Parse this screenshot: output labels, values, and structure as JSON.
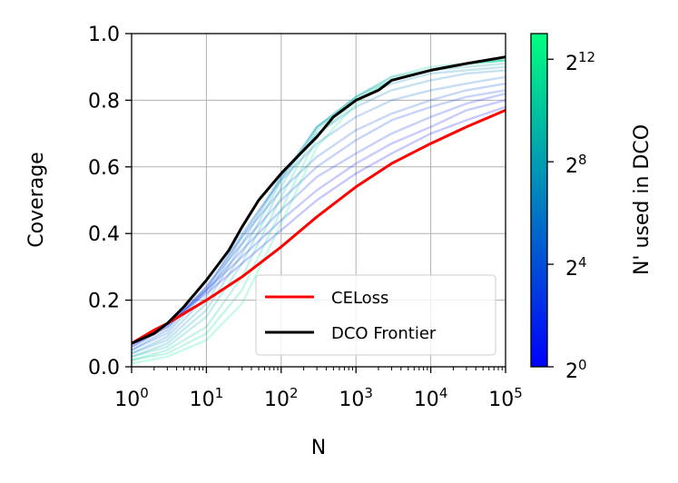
{
  "chart_data": {
    "type": "line",
    "xlabel": "N",
    "ylabel": "Coverage",
    "xscale": "log10",
    "xlim": [
      1,
      100000
    ],
    "ylim": [
      0,
      1
    ],
    "x_ticks": [
      {
        "value": 1,
        "base": "10",
        "exp": "0"
      },
      {
        "value": 10,
        "base": "10",
        "exp": "1"
      },
      {
        "value": 100,
        "base": "10",
        "exp": "2"
      },
      {
        "value": 1000,
        "base": "10",
        "exp": "3"
      },
      {
        "value": 10000,
        "base": "10",
        "exp": "4"
      },
      {
        "value": 100000,
        "base": "10",
        "exp": "5"
      }
    ],
    "y_ticks": [
      {
        "value": 0,
        "label": "0.0"
      },
      {
        "value": 0.2,
        "label": "0.2"
      },
      {
        "value": 0.4,
        "label": "0.4"
      },
      {
        "value": 0.6,
        "label": "0.6"
      },
      {
        "value": 0.8,
        "label": "0.8"
      },
      {
        "value": 1,
        "label": "1.0"
      }
    ],
    "grid": true,
    "legend_position": "lower-right",
    "legend": [
      {
        "label": "CELoss",
        "color": "#ff0000"
      },
      {
        "label": "DCO Frontier",
        "color": "#000000"
      }
    ],
    "series": [
      {
        "name": "CELoss",
        "color": "#ff0000",
        "x": [
          1,
          2,
          3,
          10,
          30,
          100,
          300,
          1000,
          3000,
          10000,
          30000,
          100000
        ],
        "y": [
          0.07,
          0.11,
          0.13,
          0.2,
          0.27,
          0.36,
          0.45,
          0.54,
          0.61,
          0.67,
          0.72,
          0.77
        ]
      },
      {
        "name": "DCO Frontier",
        "color": "#000000",
        "x": [
          1,
          2,
          3,
          5,
          10,
          20,
          30,
          50,
          100,
          200,
          300,
          500,
          1000,
          2000,
          3000,
          10000,
          30000,
          100000
        ],
        "y": [
          0.07,
          0.1,
          0.13,
          0.18,
          0.26,
          0.35,
          0.42,
          0.5,
          0.58,
          0.65,
          0.69,
          0.75,
          0.8,
          0.83,
          0.86,
          0.89,
          0.91,
          0.93
        ]
      }
    ],
    "dco_curves": {
      "x": [
        1,
        3,
        10,
        30,
        100,
        300,
        1000,
        3000,
        10000,
        30000,
        100000
      ],
      "items": [
        {
          "n_prime_log2": 0,
          "y": [
            0.07,
            0.13,
            0.22,
            0.31,
            0.41,
            0.5,
            0.58,
            0.64,
            0.7,
            0.74,
            0.78
          ]
        },
        {
          "n_prime_log2": 1,
          "y": [
            0.07,
            0.13,
            0.23,
            0.33,
            0.44,
            0.53,
            0.61,
            0.67,
            0.72,
            0.77,
            0.8
          ]
        },
        {
          "n_prime_log2": 2,
          "y": [
            0.06,
            0.12,
            0.23,
            0.35,
            0.47,
            0.57,
            0.64,
            0.7,
            0.75,
            0.79,
            0.82
          ]
        },
        {
          "n_prime_log2": 3,
          "y": [
            0.06,
            0.12,
            0.24,
            0.37,
            0.5,
            0.6,
            0.68,
            0.74,
            0.78,
            0.81,
            0.83
          ]
        },
        {
          "n_prime_log2": 4,
          "y": [
            0.05,
            0.11,
            0.24,
            0.39,
            0.53,
            0.63,
            0.71,
            0.76,
            0.8,
            0.83,
            0.85
          ]
        },
        {
          "n_prime_log2": 5,
          "y": [
            0.05,
            0.1,
            0.23,
            0.4,
            0.56,
            0.67,
            0.75,
            0.8,
            0.83,
            0.85,
            0.87
          ]
        },
        {
          "n_prime_log2": 6,
          "y": [
            0.04,
            0.09,
            0.21,
            0.39,
            0.57,
            0.7,
            0.78,
            0.83,
            0.86,
            0.88,
            0.89
          ]
        },
        {
          "n_prime_log2": 7,
          "y": [
            0.04,
            0.08,
            0.19,
            0.37,
            0.57,
            0.72,
            0.8,
            0.85,
            0.88,
            0.89,
            0.9
          ]
        },
        {
          "n_prime_log2": 8,
          "y": [
            0.03,
            0.07,
            0.17,
            0.34,
            0.56,
            0.72,
            0.81,
            0.86,
            0.89,
            0.9,
            0.91
          ]
        },
        {
          "n_prime_log2": 9,
          "y": [
            0.03,
            0.06,
            0.15,
            0.31,
            0.54,
            0.72,
            0.81,
            0.87,
            0.89,
            0.91,
            0.92
          ]
        },
        {
          "n_prime_log2": 10,
          "y": [
            0.02,
            0.05,
            0.12,
            0.27,
            0.51,
            0.71,
            0.81,
            0.87,
            0.9,
            0.91,
            0.92
          ]
        },
        {
          "n_prime_log2": 11,
          "y": [
            0.02,
            0.04,
            0.1,
            0.23,
            0.47,
            0.69,
            0.8,
            0.86,
            0.89,
            0.91,
            0.92
          ]
        },
        {
          "n_prime_log2": 12,
          "y": [
            0.01,
            0.03,
            0.08,
            0.19,
            0.43,
            0.66,
            0.79,
            0.86,
            0.89,
            0.91,
            0.92
          ]
        }
      ]
    },
    "colorbar": {
      "label": "N' used in DCO",
      "log2_range": [
        0,
        13
      ],
      "colormap": [
        "#0000ff",
        "#00ff80"
      ],
      "ticks": [
        {
          "log2": 0,
          "base": "2",
          "exp": "0"
        },
        {
          "log2": 4,
          "base": "2",
          "exp": "4"
        },
        {
          "log2": 8,
          "base": "2",
          "exp": "8"
        },
        {
          "log2": 12,
          "base": "2",
          "exp": "12"
        }
      ]
    }
  }
}
